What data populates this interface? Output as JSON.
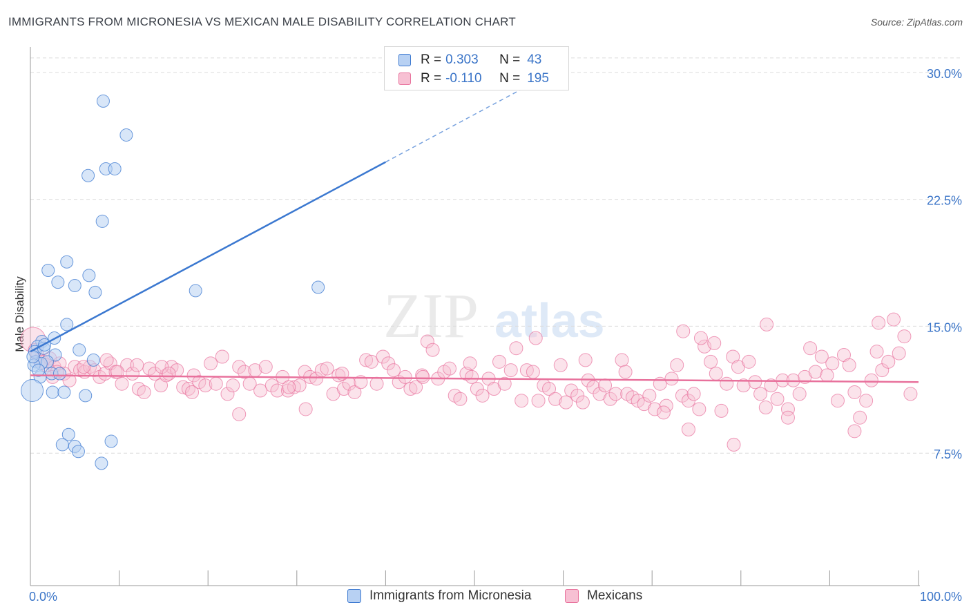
{
  "header": {
    "title": "IMMIGRANTS FROM MICRONESIA VS MEXICAN MALE DISABILITY CORRELATION CHART",
    "source": "Source: ZipAtlas.com"
  },
  "watermark": {
    "zip": "ZIP",
    "atlas": "atlas"
  },
  "colors": {
    "blue": "#3b78d0",
    "blue_fill": "#b8d1f3",
    "pink": "#e8719c",
    "pink_fill": "#f7c0d3",
    "grid": "#dcdcdc",
    "tick_label": "#3b75c8"
  },
  "legend": {
    "series": [
      {
        "r_label": "R =",
        "r_value": "0.303",
        "n_label": "N =",
        "n_value": "43"
      },
      {
        "r_label": "R =",
        "r_value": "-0.110",
        "n_label": "N =",
        "n_value": "195"
      }
    ]
  },
  "bottom_legend": [
    "Immigrants from Micronesia",
    "Mexicans"
  ],
  "chart_data": {
    "type": "scatter",
    "title": "IMMIGRANTS FROM MICRONESIA VS MEXICAN MALE DISABILITY CORRELATION CHART",
    "xlabel": "",
    "ylabel": "Male Disability",
    "xlim": [
      0,
      100
    ],
    "ylim": [
      0,
      31.5
    ],
    "y_ticks": [
      7.5,
      15.0,
      22.5,
      30.0
    ],
    "y_tick_labels": [
      "7.5%",
      "15.0%",
      "22.5%",
      "30.0%"
    ],
    "x_tick_labels": [
      "0.0%",
      "100.0%"
    ],
    "grid": true,
    "series": [
      {
        "name": "Immigrants from Micronesia",
        "r": 0.303,
        "n": 43,
        "trend": {
          "x0": 0,
          "y0": 13.5,
          "x1": 40,
          "y1": 24.7,
          "dash_to_x": 56,
          "dash_to_y": 29.2
        },
        "points": [
          [
            8.2,
            28.3
          ],
          [
            10.8,
            26.3
          ],
          [
            6.5,
            23.9
          ],
          [
            8.5,
            24.3
          ],
          [
            9.5,
            24.3
          ],
          [
            8.1,
            21.2
          ],
          [
            4.1,
            18.8
          ],
          [
            2.0,
            18.3
          ],
          [
            6.6,
            18.0
          ],
          [
            3.1,
            17.6
          ],
          [
            5.0,
            17.4
          ],
          [
            7.3,
            17.0
          ],
          [
            18.6,
            17.1
          ],
          [
            32.4,
            17.3
          ],
          [
            4.1,
            15.1
          ],
          [
            2.7,
            14.3
          ],
          [
            1.3,
            14.1
          ],
          [
            0.8,
            13.8
          ],
          [
            0.5,
            13.5
          ],
          [
            1.5,
            13.7
          ],
          [
            5.5,
            13.6
          ],
          [
            2.8,
            13.3
          ],
          [
            7.1,
            13.0
          ],
          [
            0.6,
            12.9
          ],
          [
            1.9,
            12.9
          ],
          [
            1.2,
            12.8
          ],
          [
            0.4,
            12.7
          ],
          [
            0.3,
            13.2
          ],
          [
            1.1,
            12.0
          ],
          [
            2.4,
            12.2
          ],
          [
            3.3,
            12.2
          ],
          [
            2.5,
            11.1
          ],
          [
            3.8,
            11.1
          ],
          [
            6.2,
            10.9
          ],
          [
            0.2,
            11.2
          ],
          [
            4.3,
            8.6
          ],
          [
            9.1,
            8.2
          ],
          [
            3.6,
            8.0
          ],
          [
            5.0,
            7.9
          ],
          [
            5.4,
            7.6
          ],
          [
            8.0,
            6.9
          ],
          [
            1.6,
            13.9
          ],
          [
            0.9,
            12.4
          ]
        ]
      },
      {
        "name": "Mexicans",
        "r": -0.11,
        "n": 195,
        "trend": {
          "x0": 0,
          "y0": 12.1,
          "x1": 100,
          "y1": 11.7
        },
        "points": [
          [
            0.3,
            14.2
          ],
          [
            0.5,
            13.6
          ],
          [
            0.8,
            13.3
          ],
          [
            1.0,
            13.0
          ],
          [
            1.4,
            12.9
          ],
          [
            1.8,
            12.7
          ],
          [
            2.2,
            13.1
          ],
          [
            2.7,
            12.6
          ],
          [
            3.3,
            12.8
          ],
          [
            3.8,
            12.2
          ],
          [
            4.4,
            11.8
          ],
          [
            5.0,
            12.6
          ],
          [
            5.6,
            12.4
          ],
          [
            6.1,
            12.3
          ],
          [
            6.7,
            12.6
          ],
          [
            7.2,
            12.4
          ],
          [
            7.8,
            12.0
          ],
          [
            8.4,
            12.2
          ],
          [
            9.0,
            12.8
          ],
          [
            9.6,
            12.3
          ],
          [
            10.3,
            11.6
          ],
          [
            10.9,
            12.7
          ],
          [
            11.5,
            12.2
          ],
          [
            12.2,
            11.3
          ],
          [
            12.8,
            11.1
          ],
          [
            13.4,
            12.5
          ],
          [
            14.0,
            12.2
          ],
          [
            14.7,
            11.5
          ],
          [
            15.3,
            12.1
          ],
          [
            15.9,
            12.6
          ],
          [
            16.5,
            12.4
          ],
          [
            17.2,
            11.4
          ],
          [
            17.8,
            11.3
          ],
          [
            18.4,
            12.1
          ],
          [
            19.0,
            11.7
          ],
          [
            19.7,
            11.5
          ],
          [
            20.3,
            12.8
          ],
          [
            20.9,
            11.6
          ],
          [
            21.6,
            13.2
          ],
          [
            22.2,
            11.0
          ],
          [
            22.8,
            11.5
          ],
          [
            23.5,
            12.6
          ],
          [
            24.1,
            12.3
          ],
          [
            24.7,
            11.6
          ],
          [
            25.3,
            12.4
          ],
          [
            25.9,
            11.2
          ],
          [
            26.5,
            12.6
          ],
          [
            27.2,
            11.5
          ],
          [
            27.8,
            11.2
          ],
          [
            28.4,
            12.0
          ],
          [
            29.0,
            11.2
          ],
          [
            29.7,
            11.4
          ],
          [
            30.3,
            11.5
          ],
          [
            30.9,
            12.3
          ],
          [
            31.5,
            12.0
          ],
          [
            32.2,
            11.9
          ],
          [
            32.8,
            12.4
          ],
          [
            33.4,
            12.5
          ],
          [
            34.1,
            11.0
          ],
          [
            34.7,
            12.1
          ],
          [
            35.3,
            11.3
          ],
          [
            35.9,
            11.6
          ],
          [
            36.5,
            11.1
          ],
          [
            37.2,
            11.7
          ],
          [
            37.8,
            13.0
          ],
          [
            38.4,
            12.9
          ],
          [
            39.0,
            11.6
          ],
          [
            39.7,
            13.2
          ],
          [
            40.3,
            12.8
          ],
          [
            40.9,
            12.4
          ],
          [
            41.5,
            11.7
          ],
          [
            42.2,
            12.0
          ],
          [
            42.8,
            11.3
          ],
          [
            43.4,
            11.4
          ],
          [
            44.1,
            12.1
          ],
          [
            44.7,
            14.1
          ],
          [
            45.3,
            13.6
          ],
          [
            45.9,
            11.9
          ],
          [
            46.6,
            12.3
          ],
          [
            47.2,
            12.5
          ],
          [
            47.8,
            10.9
          ],
          [
            48.4,
            10.7
          ],
          [
            49.1,
            12.2
          ],
          [
            49.7,
            12.0
          ],
          [
            50.3,
            11.3
          ],
          [
            50.9,
            10.9
          ],
          [
            51.6,
            11.9
          ],
          [
            52.2,
            11.3
          ],
          [
            52.8,
            12.9
          ],
          [
            53.4,
            11.6
          ],
          [
            54.1,
            12.4
          ],
          [
            54.7,
            13.7
          ],
          [
            55.3,
            10.6
          ],
          [
            55.9,
            12.4
          ],
          [
            56.6,
            12.3
          ],
          [
            57.2,
            10.6
          ],
          [
            57.8,
            11.5
          ],
          [
            58.4,
            11.3
          ],
          [
            59.1,
            10.7
          ],
          [
            59.7,
            12.7
          ],
          [
            60.3,
            10.5
          ],
          [
            60.9,
            11.2
          ],
          [
            61.6,
            10.9
          ],
          [
            62.2,
            10.5
          ],
          [
            62.8,
            11.8
          ],
          [
            63.4,
            11.4
          ],
          [
            64.1,
            11.0
          ],
          [
            64.7,
            11.5
          ],
          [
            65.3,
            10.7
          ],
          [
            65.9,
            11.0
          ],
          [
            66.6,
            13.0
          ],
          [
            67.2,
            11.0
          ],
          [
            67.8,
            10.8
          ],
          [
            68.4,
            10.6
          ],
          [
            69.1,
            10.4
          ],
          [
            69.7,
            10.9
          ],
          [
            70.3,
            10.1
          ],
          [
            70.9,
            11.6
          ],
          [
            71.6,
            10.3
          ],
          [
            72.2,
            11.9
          ],
          [
            72.8,
            12.7
          ],
          [
            73.4,
            10.9
          ],
          [
            74.1,
            10.6
          ],
          [
            74.7,
            11.0
          ],
          [
            75.3,
            10.1
          ],
          [
            75.9,
            13.8
          ],
          [
            76.6,
            12.9
          ],
          [
            77.2,
            12.2
          ],
          [
            77.8,
            10.0
          ],
          [
            78.4,
            11.6
          ],
          [
            79.1,
            13.2
          ],
          [
            79.7,
            12.6
          ],
          [
            80.3,
            11.5
          ],
          [
            80.9,
            12.9
          ],
          [
            81.6,
            11.7
          ],
          [
            82.2,
            11.0
          ],
          [
            82.8,
            10.2
          ],
          [
            83.4,
            11.5
          ],
          [
            84.1,
            10.7
          ],
          [
            84.7,
            11.8
          ],
          [
            85.3,
            10.1
          ],
          [
            85.9,
            11.8
          ],
          [
            86.6,
            11.0
          ],
          [
            87.2,
            12.0
          ],
          [
            87.8,
            13.7
          ],
          [
            88.4,
            12.3
          ],
          [
            89.1,
            13.2
          ],
          [
            89.7,
            12.1
          ],
          [
            90.3,
            12.8
          ],
          [
            90.9,
            10.6
          ],
          [
            91.6,
            13.3
          ],
          [
            92.2,
            12.7
          ],
          [
            92.8,
            11.1
          ],
          [
            93.4,
            9.6
          ],
          [
            94.1,
            10.6
          ],
          [
            94.7,
            11.8
          ],
          [
            95.3,
            13.5
          ],
          [
            95.9,
            12.4
          ],
          [
            96.6,
            12.9
          ],
          [
            97.2,
            15.4
          ],
          [
            97.8,
            13.4
          ],
          [
            98.4,
            14.4
          ],
          [
            99.1,
            11.0
          ],
          [
            73.5,
            14.7
          ],
          [
            75.5,
            14.3
          ],
          [
            77.0,
            14.0
          ],
          [
            82.9,
            15.1
          ],
          [
            95.5,
            15.2
          ],
          [
            56.9,
            14.3
          ],
          [
            49.5,
            12.8
          ],
          [
            62.5,
            13.0
          ],
          [
            67.0,
            12.3
          ],
          [
            71.3,
            9.9
          ],
          [
            74.1,
            8.9
          ],
          [
            79.2,
            8.0
          ],
          [
            85.3,
            9.6
          ],
          [
            92.8,
            8.8
          ],
          [
            3.0,
            12.3
          ],
          [
            9.8,
            12.3
          ],
          [
            14.8,
            12.6
          ],
          [
            29.1,
            11.4
          ],
          [
            31.0,
            10.1
          ],
          [
            23.5,
            9.8
          ],
          [
            35.1,
            12.2
          ],
          [
            44.2,
            12.0
          ],
          [
            2.5,
            12.0
          ],
          [
            6.0,
            12.6
          ],
          [
            8.6,
            13.0
          ],
          [
            12.0,
            12.7
          ],
          [
            15.6,
            12.2
          ],
          [
            18.2,
            11.1
          ]
        ]
      }
    ],
    "x_ticks_minor": [
      0,
      10,
      20,
      30,
      40,
      50,
      60,
      70,
      80,
      90,
      100
    ]
  }
}
